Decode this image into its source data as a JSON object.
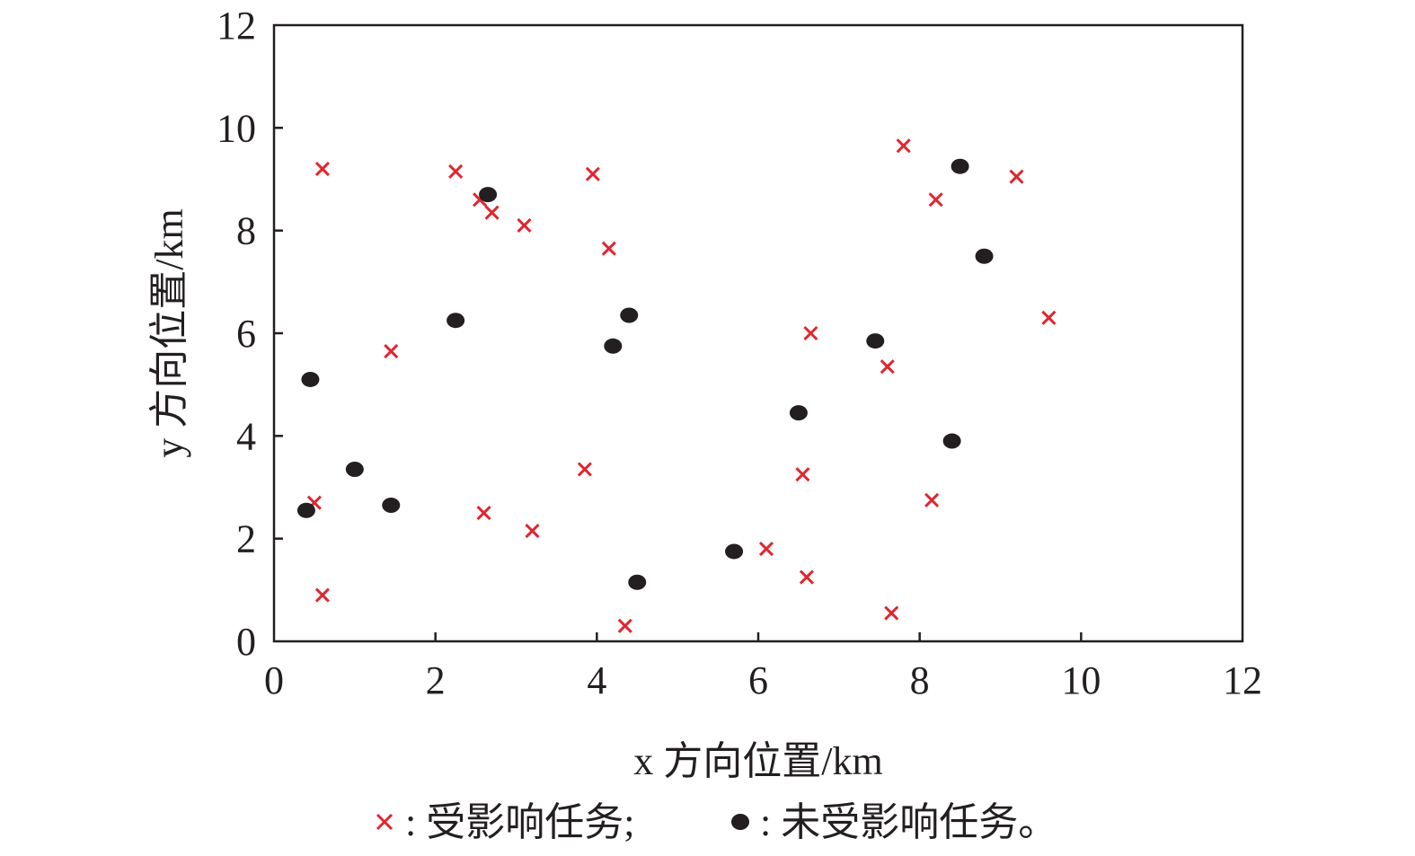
{
  "chart_data": {
    "type": "scatter",
    "xlabel": "x 方向位置/km",
    "ylabel": "y 方向位置/km",
    "xlim": [
      0,
      12
    ],
    "ylim": [
      0,
      12
    ],
    "x_ticks": [
      0,
      2,
      4,
      6,
      8,
      10,
      12
    ],
    "y_ticks": [
      0,
      2,
      4,
      6,
      8,
      10,
      12
    ],
    "grid": false,
    "legend_position": "bottom",
    "series": [
      {
        "name": "受影响任务;",
        "marker": "x",
        "color": "#e0262f",
        "points": [
          [
            0.6,
            9.2
          ],
          [
            0.5,
            2.7
          ],
          [
            0.6,
            0.9
          ],
          [
            1.45,
            5.65
          ],
          [
            2.25,
            9.15
          ],
          [
            2.55,
            8.6
          ],
          [
            2.7,
            8.35
          ],
          [
            2.6,
            2.5
          ],
          [
            3.1,
            8.1
          ],
          [
            3.2,
            2.15
          ],
          [
            3.85,
            3.35
          ],
          [
            3.95,
            9.1
          ],
          [
            4.15,
            7.65
          ],
          [
            4.35,
            0.3
          ],
          [
            6.1,
            1.8
          ],
          [
            6.55,
            3.25
          ],
          [
            6.6,
            1.25
          ],
          [
            6.65,
            6.0
          ],
          [
            7.6,
            5.35
          ],
          [
            7.65,
            0.55
          ],
          [
            7.8,
            9.65
          ],
          [
            8.15,
            2.75
          ],
          [
            8.2,
            8.6
          ],
          [
            9.2,
            9.05
          ],
          [
            9.6,
            6.3
          ]
        ]
      },
      {
        "name": "未受影响任务。",
        "marker": "dot",
        "color": "#231f20",
        "points": [
          [
            0.4,
            2.55
          ],
          [
            0.45,
            5.1
          ],
          [
            1.0,
            3.35
          ],
          [
            1.45,
            2.65
          ],
          [
            2.25,
            6.25
          ],
          [
            2.65,
            8.7
          ],
          [
            4.2,
            5.75
          ],
          [
            4.4,
            6.35
          ],
          [
            4.5,
            1.15
          ],
          [
            5.7,
            1.75
          ],
          [
            6.5,
            4.45
          ],
          [
            7.45,
            5.85
          ],
          [
            8.4,
            3.9
          ],
          [
            8.5,
            9.25
          ],
          [
            8.8,
            7.5
          ]
        ]
      }
    ]
  },
  "legend": {
    "affected_label": ": 受影响任务;",
    "unaffected_label": ": 未受影响任务。"
  }
}
